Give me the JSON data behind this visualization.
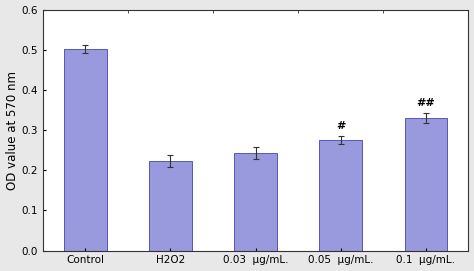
{
  "categories": [
    "Control",
    "H2O2",
    "0.03  μg/mL.",
    "0.05  μg/mL.",
    "0.1  μg/mL."
  ],
  "values": [
    0.502,
    0.223,
    0.243,
    0.275,
    0.33
  ],
  "errors": [
    0.009,
    0.015,
    0.016,
    0.01,
    0.013
  ],
  "annotations": [
    "",
    "",
    "",
    "#",
    "##"
  ],
  "bar_color": "#9999dd",
  "bar_edge_color": "#4444aa",
  "ylabel": "OD value at 570 nm",
  "ylim": [
    0,
    0.6
  ],
  "yticks": [
    0,
    0.1,
    0.2,
    0.3,
    0.4,
    0.5,
    0.6
  ],
  "outer_background": "#e8e8e8",
  "plot_background": "#ffffff",
  "annotation_fontsize": 8,
  "ylabel_fontsize": 8.5,
  "tick_fontsize": 7.5,
  "bar_width": 0.5
}
